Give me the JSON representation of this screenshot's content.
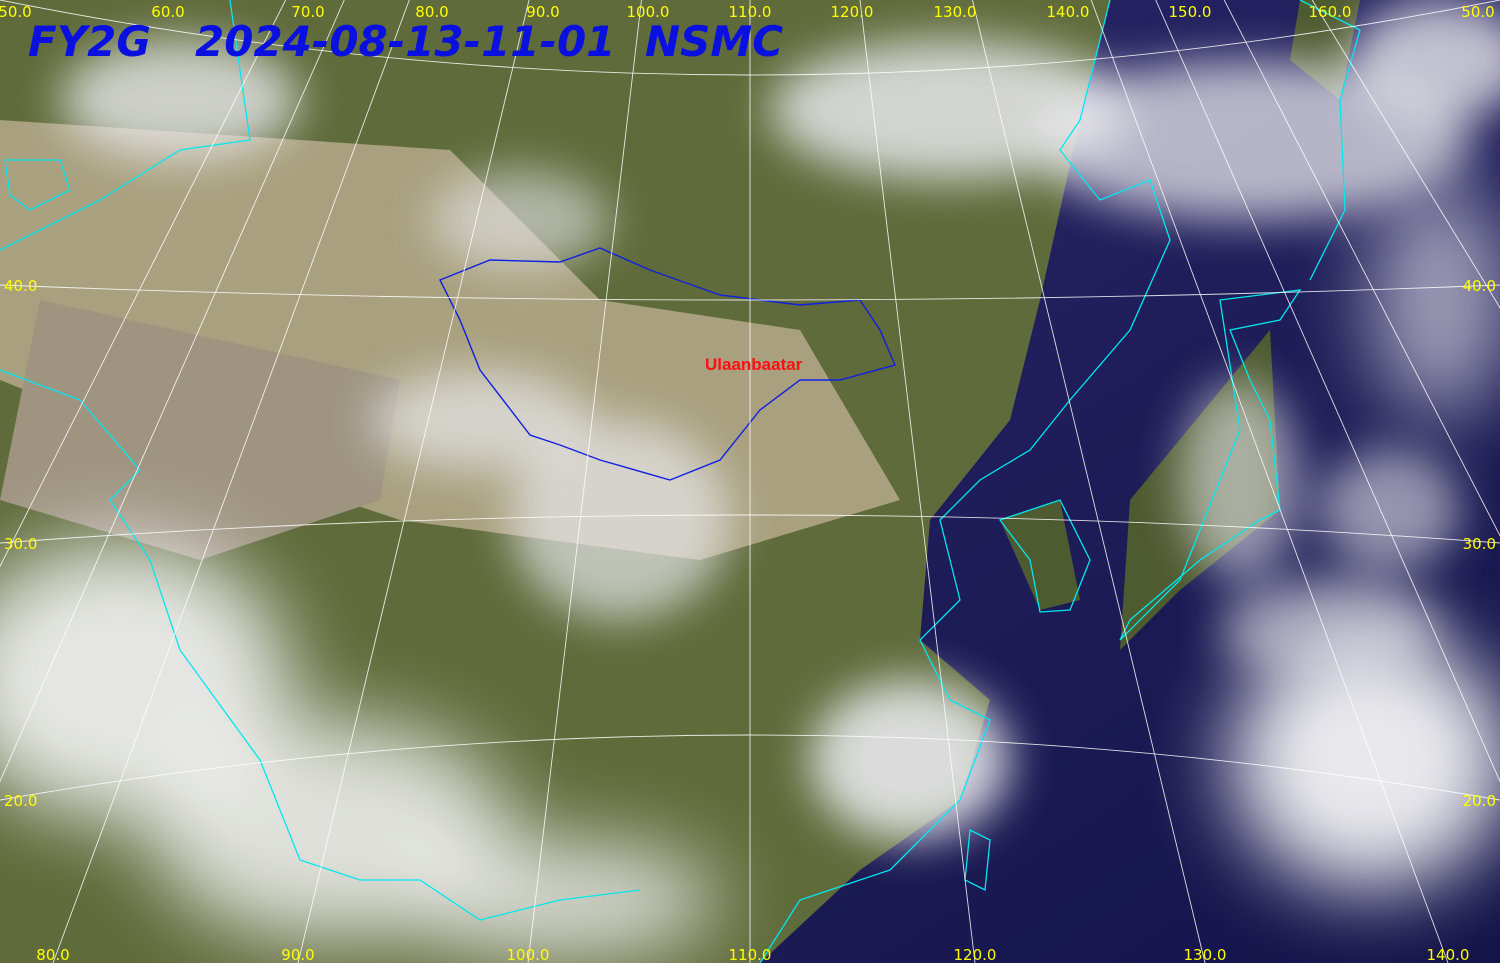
{
  "title": {
    "satellite": "FY2G",
    "timestamp": "2024-08-13-11-01",
    "agency": "NSMC"
  },
  "top_labels": [
    "50.0",
    "60.0",
    "70.0",
    "80.0",
    "90.0",
    "100.0",
    "110.0",
    "120.0",
    "130.0",
    "140.0",
    "150.0",
    "160.0",
    "50.0"
  ],
  "left_labels": [
    "40.0",
    "30.0",
    "20.0"
  ],
  "right_labels": [
    "40.0",
    "30.0",
    "20.0"
  ],
  "bottom_labels": [
    "80.0",
    "90.0",
    "100.0",
    "110.0",
    "120.0",
    "130.0",
    "140.0"
  ],
  "places": [
    "Ulaanbaatar"
  ]
}
